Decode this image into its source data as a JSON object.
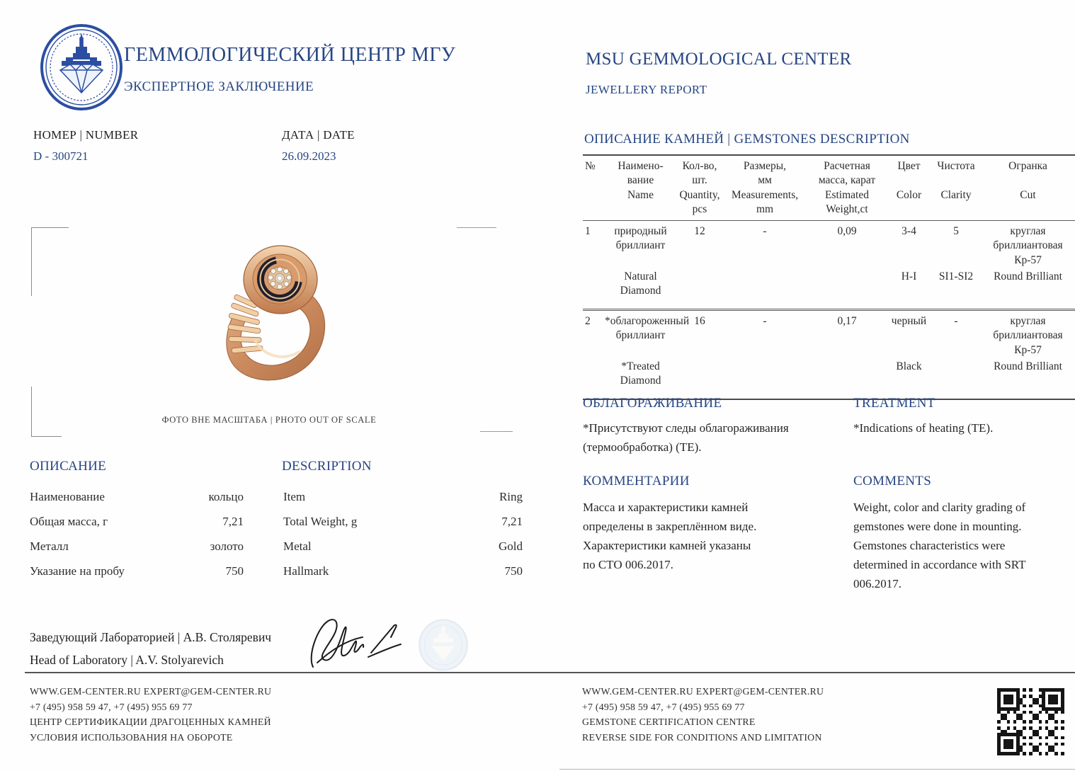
{
  "colors": {
    "accent_navy": "#274683",
    "seal_blue": "#2b4ea2",
    "ring_gold": "#c98a5f",
    "line_gray": "#555555"
  },
  "header_left": {
    "org_ru": "ГЕММОЛОГИЧЕСКИЙ ЦЕНТР МГУ",
    "doc_ru": "ЭКСПЕРТНОЕ ЗАКЛЮЧЕНИЕ",
    "logo": "msu-gem-center-seal"
  },
  "header_right": {
    "org_en": "MSU GEMMOLOGICAL CENTER",
    "doc_en": "JEWELLERY REPORT"
  },
  "number": {
    "label": "НОМЕР | NUMBER",
    "value": "D - 300721"
  },
  "date": {
    "label": "ДАТА | DATE",
    "value": "26.09.2023"
  },
  "photo": {
    "caption": "ФОТО ВНЕ МАСШТАБА | PHOTO OUT OF SCALE",
    "subject": "gold-ring-with-diamonds"
  },
  "gemstones": {
    "title": "ОПИСАНИЕ КАМНЕЙ | GEMSTONES DESCRIPTION",
    "headers": [
      "№",
      "Наимено-\nвание\nName",
      "Кол-во,\nшт.\nQuantity,\npcs",
      "Размеры,\nмм\nMeasurements,\nmm",
      "Расчетная\nмасса, карат\nEstimated\nWeight,ct",
      "Цвет\n\nColor",
      "Чистота\n\nClarity",
      "Огранка\n\nCut"
    ],
    "rows": [
      {
        "no": "1",
        "name_ru": "природный\nбриллиант",
        "name_en": "Natural\nDiamond",
        "qty": "12",
        "measurements": "-",
        "weight": "0,09",
        "color_ru": "3-4",
        "color_en": "H-I",
        "clarity_ru": "5",
        "clarity_en": "SI1-SI2",
        "cut_ru": "круглая\nбриллиантовая\nКр-57",
        "cut_en": "Round Brilliant"
      },
      {
        "no": "2",
        "name_ru": "*облагороженный\nбриллиант",
        "name_en": "*Treated\nDiamond",
        "qty": "16",
        "measurements": "-",
        "weight": "0,17",
        "color_ru": "черный",
        "color_en": "Black",
        "clarity_ru": "-",
        "clarity_en": "",
        "cut_ru": "круглая\nбриллиантовая\nКр-57",
        "cut_en": "Round Brilliant"
      }
    ]
  },
  "treatment": {
    "title_ru": "ОБЛАГОРАЖИВАНИЕ",
    "text_ru": "*Присутствуют следы облагораживания\n(термообработка) (ТЕ).",
    "title_en": "TREATMENT",
    "text_en": "*Indications of heating (TE)."
  },
  "comments": {
    "title_ru": "КОММЕНТАРИИ",
    "text_ru": "Масса и характеристики камней\nопределены в закреплённом виде.\nХарактеристики камней указаны\nпо СТО 006.2017.",
    "title_en": "COMMENTS",
    "text_en": "Weight, color and clarity grading of\ngemstones were done in mounting.\nGemstones characteristics were\ndetermined in accordance with SRT\n006.2017."
  },
  "description": {
    "title_ru": "ОПИСАНИЕ",
    "title_en": "DESCRIPTION",
    "rows": [
      {
        "label_ru": "Наименование",
        "value_ru": "кольцо",
        "label_en": "Item",
        "value_en": "Ring"
      },
      {
        "label_ru": "Общая масса, г",
        "value_ru": "7,21",
        "label_en": "Total Weight, g",
        "value_en": "7,21"
      },
      {
        "label_ru": "Металл",
        "value_ru": "золото",
        "label_en": "Metal",
        "value_en": "Gold"
      },
      {
        "label_ru": "Указание на пробу",
        "value_ru": "750",
        "label_en": "Hallmark",
        "value_en": "750"
      }
    ]
  },
  "signature": {
    "line_ru": "Заведующий Лабораторией  | А.В. Столяревич",
    "line_en": "Head of Laboratory  | A.V. Stolyarevich"
  },
  "footer_left": {
    "lines": [
      "WWW.GEM-CENTER.RU EXPERT@GEM-CENTER.RU",
      "+7 (495) 958 59 47, +7 (495) 955 69 77",
      "ЦЕНТР СЕРТИФИКАЦИИ ДРАГОЦЕННЫХ КАМНЕЙ",
      "УСЛОВИЯ ИСПОЛЬЗОВАНИЯ НА ОБОРОТЕ"
    ]
  },
  "footer_right": {
    "lines": [
      "WWW.GEM-CENTER.RU EXPERT@GEM-CENTER.RU",
      "+7 (495) 958 59 47, +7 (495) 955 69 77",
      "GEMSTONE CERTIFICATION CENTRE",
      "REVERSE SIDE FOR CONDITIONS AND LIMITATION"
    ]
  }
}
